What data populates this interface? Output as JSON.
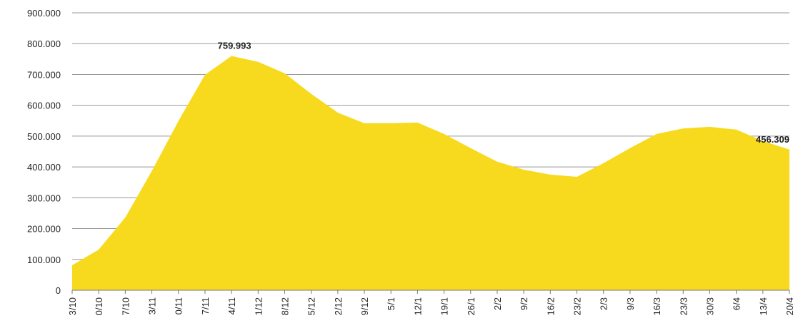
{
  "chart_data": {
    "type": "area",
    "color": "#f7da1e",
    "categories": [
      "3/10",
      "0/10",
      "7/10",
      "3/11",
      "0/11",
      "7/11",
      "4/11",
      "1/12",
      "8/12",
      "5/12",
      "2/12",
      "9/12",
      "5/1",
      "12/1",
      "19/1",
      "26/1",
      "2/2",
      "9/2",
      "16/2",
      "23/2",
      "2/3",
      "9/3",
      "16/3",
      "23/3",
      "30/3",
      "6/4",
      "13/4",
      "20/4"
    ],
    "values": [
      81000,
      132000,
      236000,
      387000,
      549000,
      699000,
      759993,
      741000,
      704000,
      637000,
      576000,
      542000,
      542000,
      544000,
      507000,
      461000,
      417000,
      391000,
      375000,
      368000,
      412000,
      461000,
      507000,
      525000,
      530000,
      521000,
      484000,
      456309
    ],
    "value_labels": [
      null,
      null,
      null,
      null,
      null,
      null,
      "759.993",
      null,
      null,
      null,
      null,
      null,
      null,
      null,
      null,
      null,
      null,
      null,
      null,
      null,
      null,
      null,
      null,
      null,
      null,
      null,
      null,
      "456.309"
    ],
    "ylim": [
      0,
      900000
    ],
    "yticks": [
      {
        "value": 0,
        "label": "0"
      },
      {
        "value": 100000,
        "label": "100.000"
      },
      {
        "value": 200000,
        "label": "200.000"
      },
      {
        "value": 300000,
        "label": "300.000"
      },
      {
        "value": 400000,
        "label": "400.000"
      },
      {
        "value": 500000,
        "label": "500.000"
      },
      {
        "value": 600000,
        "label": "600.000"
      },
      {
        "value": 700000,
        "label": "700.000"
      },
      {
        "value": 800000,
        "label": "800.000"
      },
      {
        "value": 900000,
        "label": "900.000"
      }
    ],
    "grid": true
  }
}
